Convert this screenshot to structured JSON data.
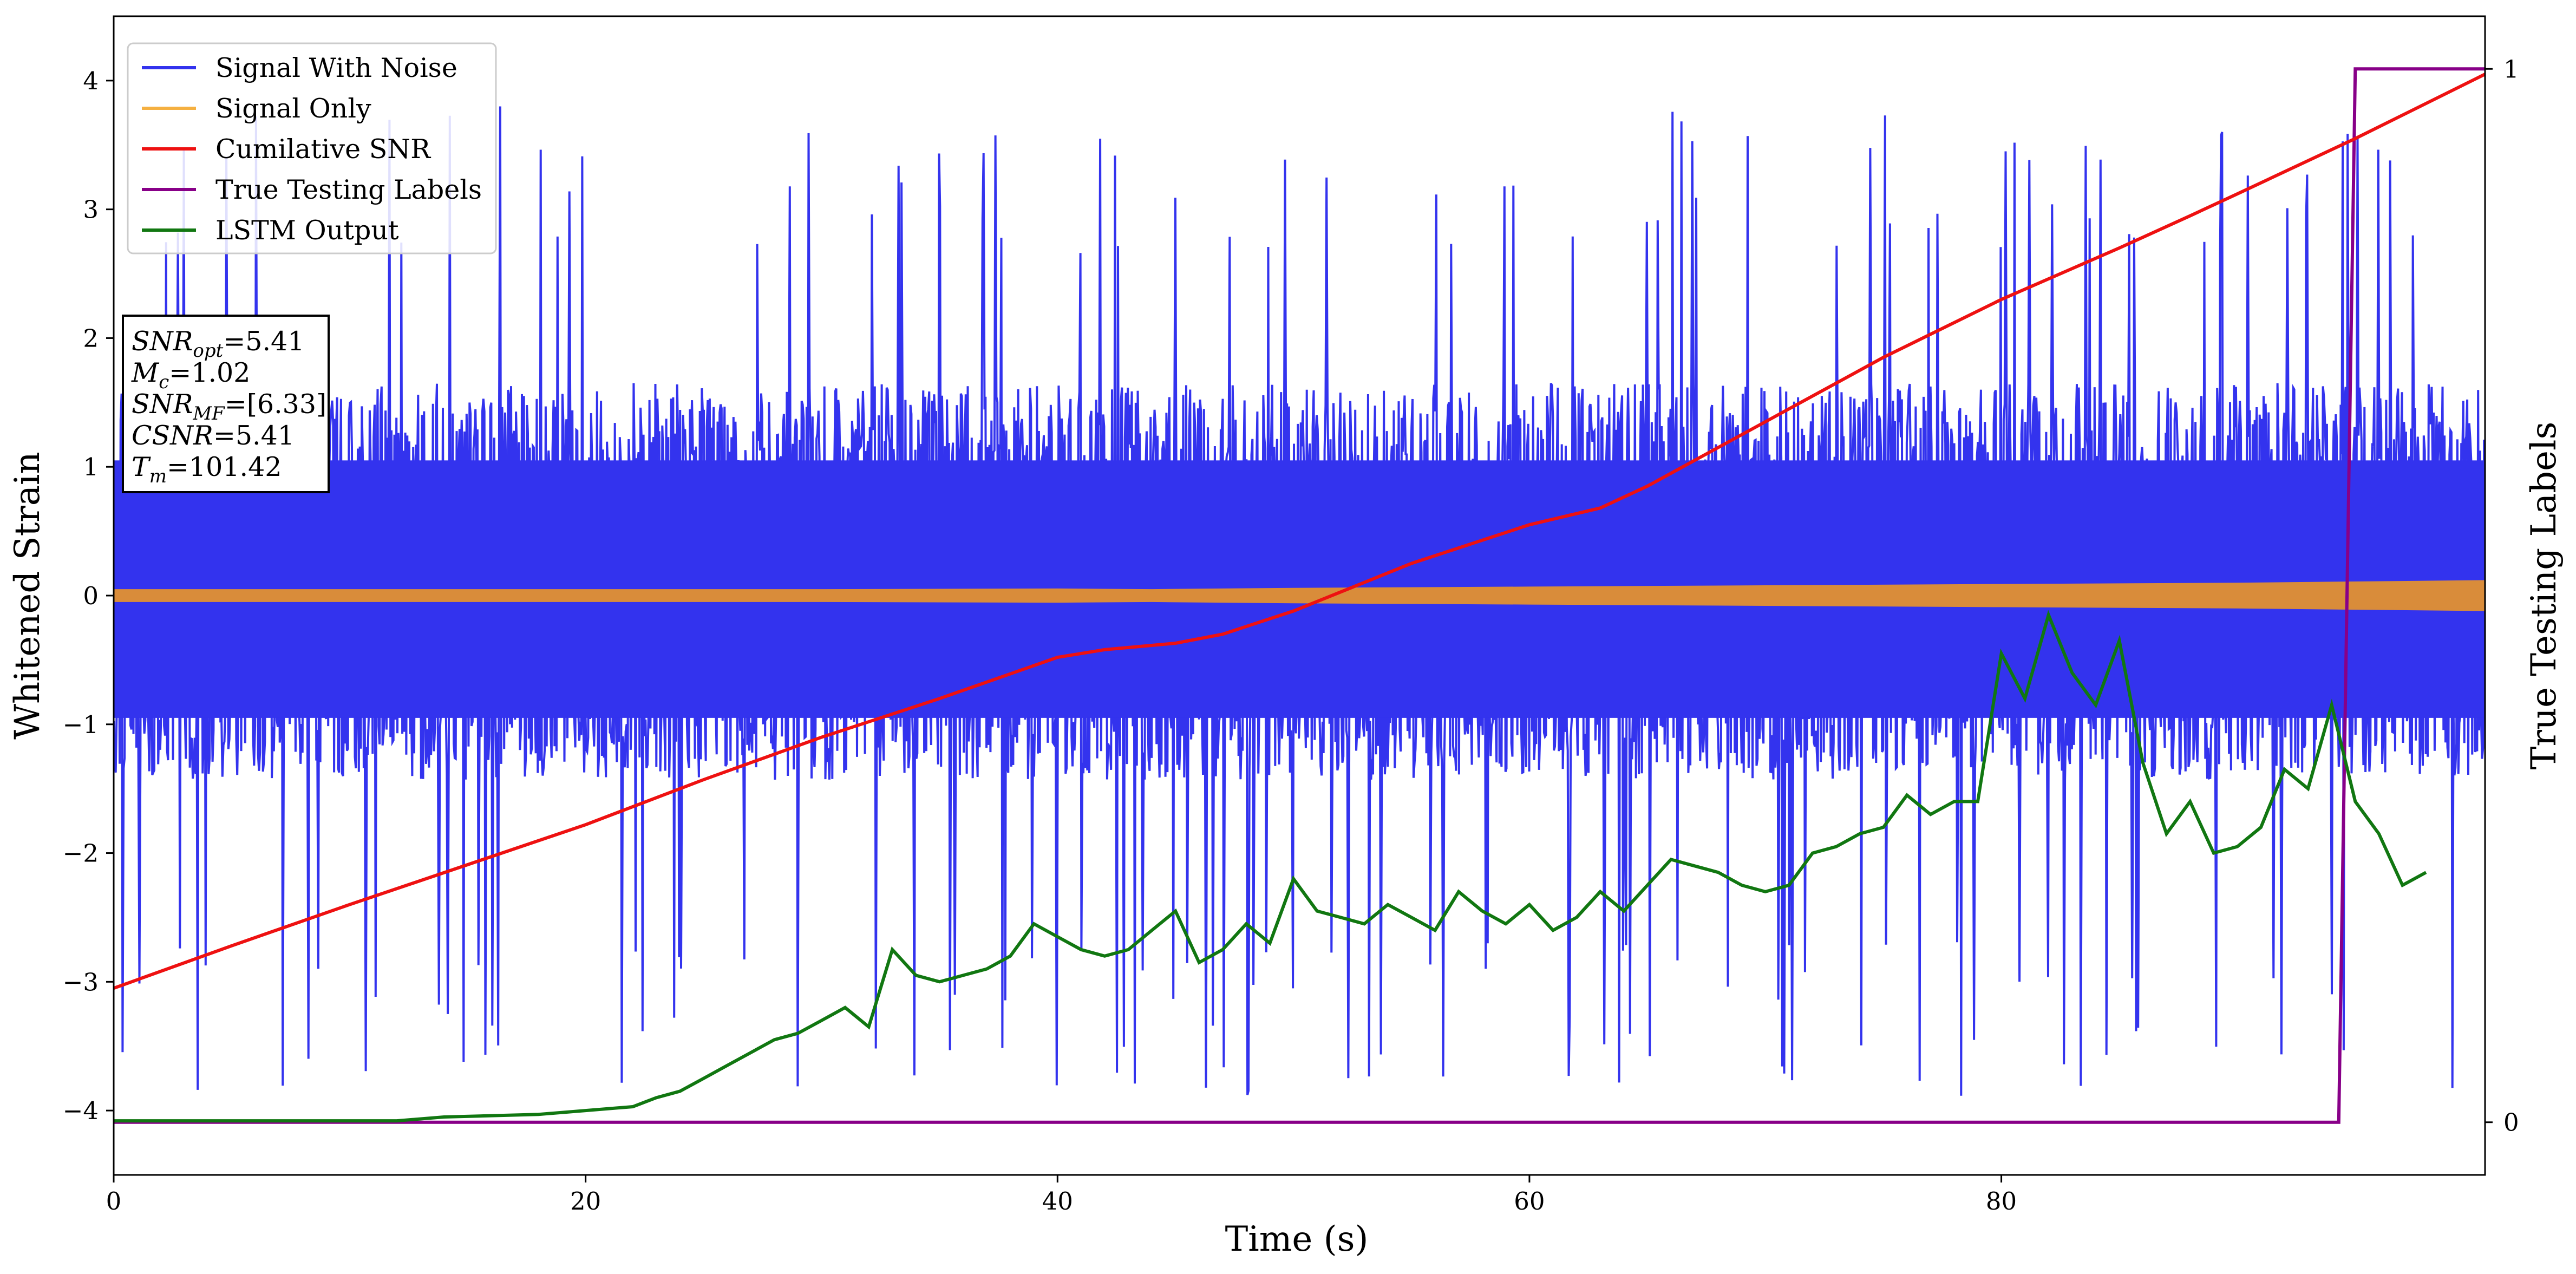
{
  "chart_data": {
    "type": "line",
    "xlabel": "Time (s)",
    "ylabel": "Whitened Strain",
    "y2label": "True Testing Labels",
    "xlim": [
      0,
      100.5
    ],
    "ylim": [
      -4.5,
      4.5
    ],
    "y2lim": [
      -0.05,
      1.05
    ],
    "x_ticks": [
      0,
      20,
      40,
      60,
      80
    ],
    "x_tick_labels": [
      "0",
      "20",
      "40",
      "60",
      "80"
    ],
    "y_ticks": [
      -4,
      -3,
      -2,
      -1,
      0,
      1,
      2,
      3,
      4
    ],
    "y_tick_labels": [
      "−4",
      "−3",
      "−2",
      "−1",
      "0",
      "1",
      "2",
      "3",
      "4"
    ],
    "y2_ticks": [
      0,
      1
    ],
    "y2_tick_labels": [
      "0",
      "1"
    ],
    "grid": false,
    "legend_position": "top-left",
    "legend": [
      {
        "label": "Signal With Noise",
        "color": "#3333ee"
      },
      {
        "label": "Signal Only",
        "color": "#f5b041"
      },
      {
        "label": "Cumilative SNR",
        "color": "#ee1111"
      },
      {
        "label": "True Testing Labels",
        "color": "#880088"
      },
      {
        "label": "LSTM Output",
        "color": "#117711"
      }
    ],
    "annotation": {
      "lines": [
        {
          "sym": "SNR",
          "sub": "opt",
          "val": "=5.41"
        },
        {
          "sym": "M",
          "sub": "c",
          "val": "=1.02"
        },
        {
          "sym": "SNR",
          "sub": "MF",
          "val": "=[6.33]"
        },
        {
          "sym": "CSNR",
          "sub": "",
          "val": "=5.41"
        },
        {
          "sym": "T",
          "sub": "m",
          "val": "=101.42"
        }
      ]
    },
    "series": [
      {
        "name": "Signal With Noise",
        "color": "#3333ee",
        "envelope": {
          "x": [
            0,
            100.5
          ],
          "upper_typical": 1.5,
          "lower_typical": -1.3,
          "peak_max": 3.8,
          "peak_min": -4.1
        }
      },
      {
        "name": "Signal Only",
        "color": "#d98c3a",
        "band_x": [
          0,
          10,
          20,
          30,
          40,
          44,
          50,
          60,
          70,
          80,
          90,
          100.5
        ],
        "band_halfwidth": [
          0.05,
          0.05,
          0.05,
          0.05,
          0.055,
          0.05,
          0.06,
          0.07,
          0.08,
          0.09,
          0.1,
          0.12
        ]
      },
      {
        "name": "Cumilative SNR",
        "color": "#ee1111",
        "x": [
          0,
          5,
          10,
          15,
          20,
          25,
          30,
          35,
          40,
          42,
          45,
          47,
          50,
          55,
          60,
          63,
          65,
          70,
          75,
          80,
          85,
          88,
          90,
          95,
          100.5
        ],
        "y": [
          -3.05,
          -2.72,
          -2.4,
          -2.09,
          -1.78,
          -1.43,
          -1.1,
          -0.8,
          -0.48,
          -0.42,
          -0.37,
          -0.3,
          -0.12,
          0.25,
          0.55,
          0.68,
          0.85,
          1.35,
          1.85,
          2.3,
          2.7,
          2.95,
          3.12,
          3.55,
          4.05
        ]
      },
      {
        "name": "True Testing Labels",
        "color": "#880088",
        "axis": "right",
        "x": [
          0,
          94.3,
          95.0,
          100.5
        ],
        "y": [
          0,
          0,
          1,
          1
        ]
      },
      {
        "name": "LSTM Output",
        "color": "#117711",
        "x": [
          0,
          12,
          14,
          16,
          18,
          20,
          22,
          23,
          24,
          25,
          26,
          27,
          28,
          29,
          30,
          31,
          32,
          33,
          34,
          35,
          36,
          37,
          38,
          39,
          40,
          41,
          42,
          43,
          44,
          45,
          46,
          47,
          48,
          49,
          50,
          51,
          52,
          53,
          54,
          55,
          56,
          57,
          58,
          59,
          60,
          61,
          62,
          63,
          64,
          65,
          66,
          67,
          68,
          69,
          70,
          71,
          72,
          73,
          74,
          75,
          76,
          77,
          78,
          79,
          80,
          81,
          82,
          83,
          84,
          85,
          86,
          87,
          88,
          89,
          90,
          91,
          92,
          93,
          94,
          95,
          96,
          97,
          98
        ],
        "y": [
          -4.08,
          -4.08,
          -4.05,
          -4.04,
          -4.03,
          -4.0,
          -3.97,
          -3.9,
          -3.85,
          -3.75,
          -3.65,
          -3.55,
          -3.45,
          -3.4,
          -3.3,
          -3.2,
          -3.35,
          -2.75,
          -2.95,
          -3.0,
          -2.95,
          -2.9,
          -2.8,
          -2.55,
          -2.65,
          -2.75,
          -2.8,
          -2.75,
          -2.6,
          -2.45,
          -2.85,
          -2.75,
          -2.55,
          -2.7,
          -2.2,
          -2.45,
          -2.5,
          -2.55,
          -2.4,
          -2.5,
          -2.6,
          -2.3,
          -2.45,
          -2.55,
          -2.4,
          -2.6,
          -2.5,
          -2.3,
          -2.45,
          -2.25,
          -2.05,
          -2.1,
          -2.15,
          -2.25,
          -2.3,
          -2.25,
          -2.0,
          -1.95,
          -1.85,
          -1.8,
          -1.55,
          -1.7,
          -1.6,
          -1.6,
          -0.45,
          -0.8,
          -0.15,
          -0.6,
          -0.85,
          -0.35,
          -1.3,
          -1.85,
          -1.6,
          -2.0,
          -1.95,
          -1.8,
          -1.35,
          -1.5,
          -0.85,
          -1.6,
          -1.85,
          -2.25,
          -2.15
        ]
      }
    ]
  }
}
